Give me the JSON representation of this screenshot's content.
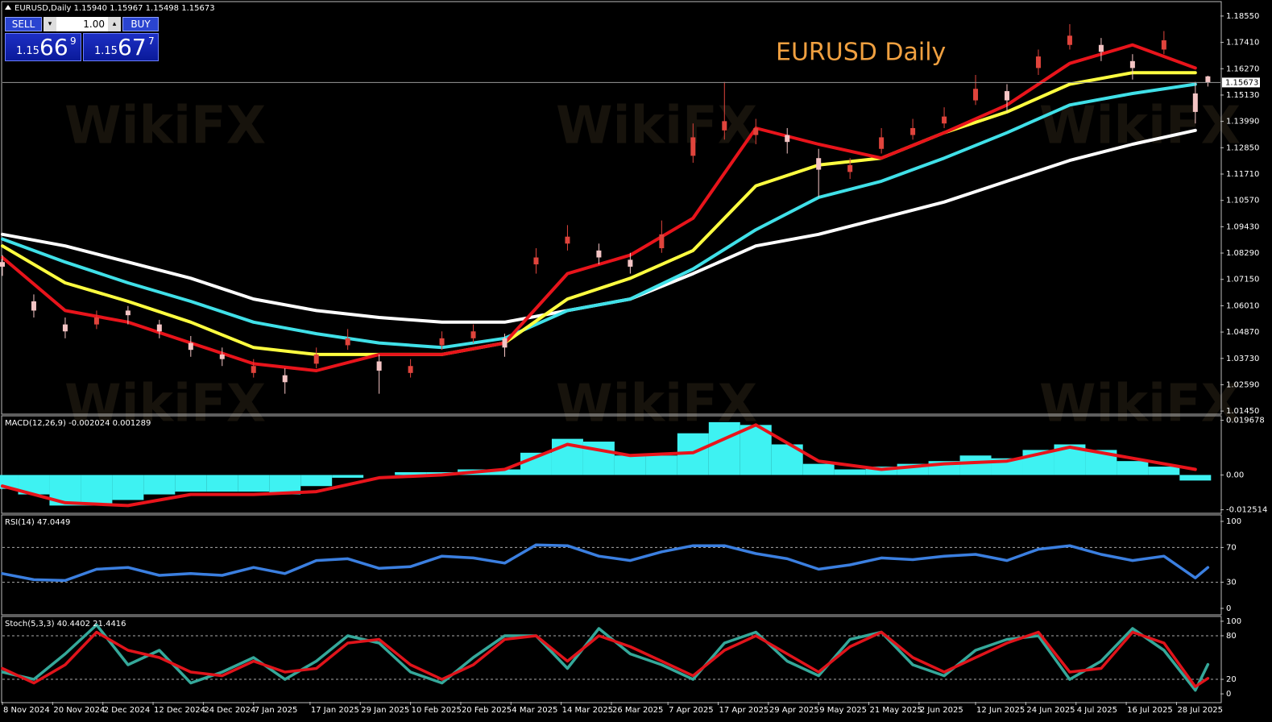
{
  "header": {
    "symbol_line": "EURUSD,Daily  1.15940 1.15967 1.15498 1.15673",
    "trade_panel": {
      "sell": "SELL",
      "lots": "1.00",
      "buy": "BUY",
      "bid": {
        "big": "1.15",
        "main": "66",
        "sup": "9"
      },
      "ask": {
        "big": "1.15",
        "main": "67",
        "sup": "7"
      }
    }
  },
  "watermark": "WikiFX",
  "chart_data": [
    {
      "type": "candlestick",
      "title": "EURUSD Daily",
      "xlim": [
        0,
        194
      ],
      "ylim": [
        1.0135,
        1.1914
      ],
      "yticks": [
        {
          "value": 1.1855,
          "label": "1.18550"
        },
        {
          "value": 1.1741,
          "label": "1.17410"
        },
        {
          "value": 1.1627,
          "label": "1.16270"
        },
        {
          "value": 1.1513,
          "label": "1.15130"
        },
        {
          "value": 1.1399,
          "label": "1.13990"
        },
        {
          "value": 1.1285,
          "label": "1.12850"
        },
        {
          "value": 1.1171,
          "label": "1.11710"
        },
        {
          "value": 1.1057,
          "label": "1.10570"
        },
        {
          "value": 1.0943,
          "label": "1.09430"
        },
        {
          "value": 1.0829,
          "label": "1.08290"
        },
        {
          "value": 1.0715,
          "label": "1.07150"
        },
        {
          "value": 1.0601,
          "label": "1.06010"
        },
        {
          "value": 1.0487,
          "label": "1.04870"
        },
        {
          "value": 1.0373,
          "label": "1.03730"
        },
        {
          "value": 1.0259,
          "label": "1.02590"
        },
        {
          "value": 1.0145,
          "label": "1.01450"
        }
      ],
      "up_color": "#e0443c",
      "down_color": "#f4c4c4",
      "x": [
        0,
        5,
        10,
        15,
        20,
        25,
        30,
        35,
        40,
        45,
        50,
        55,
        60,
        65,
        70,
        75,
        80,
        85,
        90,
        95,
        100,
        105,
        110,
        115,
        120,
        125,
        130,
        135,
        140,
        145,
        150,
        155,
        160,
        165,
        170,
        175,
        180,
        185,
        190,
        192
      ],
      "open": [
        1.079,
        1.062,
        1.052,
        1.052,
        1.058,
        1.052,
        1.044,
        1.039,
        1.031,
        1.03,
        1.035,
        1.043,
        1.036,
        1.031,
        1.043,
        1.046,
        1.046,
        1.078,
        1.087,
        1.084,
        1.08,
        1.085,
        1.125,
        1.136,
        1.134,
        1.134,
        1.124,
        1.118,
        1.128,
        1.134,
        1.139,
        1.149,
        1.153,
        1.163,
        1.173,
        1.173,
        1.166,
        1.171,
        1.152,
        1.1594
      ],
      "high": [
        1.082,
        1.065,
        1.055,
        1.058,
        1.06,
        1.054,
        1.047,
        1.042,
        1.037,
        1.033,
        1.042,
        1.05,
        1.039,
        1.037,
        1.049,
        1.052,
        1.048,
        1.085,
        1.095,
        1.087,
        1.083,
        1.097,
        1.139,
        1.157,
        1.141,
        1.137,
        1.128,
        1.124,
        1.137,
        1.141,
        1.146,
        1.16,
        1.156,
        1.171,
        1.182,
        1.176,
        1.169,
        1.179,
        1.157,
        1.15967
      ],
      "low": [
        1.073,
        1.055,
        1.046,
        1.05,
        1.052,
        1.046,
        1.038,
        1.034,
        1.029,
        1.022,
        1.033,
        1.041,
        1.022,
        1.029,
        1.041,
        1.044,
        1.038,
        1.074,
        1.084,
        1.078,
        1.074,
        1.083,
        1.122,
        1.132,
        1.13,
        1.126,
        1.107,
        1.115,
        1.126,
        1.132,
        1.137,
        1.147,
        1.144,
        1.16,
        1.171,
        1.166,
        1.158,
        1.169,
        1.139,
        1.15498
      ],
      "close": [
        1.077,
        1.058,
        1.049,
        1.055,
        1.056,
        1.049,
        1.041,
        1.037,
        1.034,
        1.027,
        1.039,
        1.046,
        1.032,
        1.034,
        1.046,
        1.049,
        1.042,
        1.081,
        1.09,
        1.081,
        1.077,
        1.091,
        1.133,
        1.14,
        1.137,
        1.131,
        1.119,
        1.121,
        1.133,
        1.137,
        1.142,
        1.154,
        1.149,
        1.168,
        1.177,
        1.17,
        1.163,
        1.175,
        1.144,
        1.15673
      ],
      "ma_x": [
        0,
        10,
        20,
        30,
        40,
        50,
        60,
        70,
        80,
        90,
        100,
        110,
        120,
        130,
        140,
        150,
        160,
        170,
        180,
        190
      ],
      "overlays": [
        {
          "color": "#ffffff",
          "values": [
            1.091,
            1.086,
            1.079,
            1.072,
            1.063,
            1.058,
            1.055,
            1.053,
            1.053,
            1.058,
            1.063,
            1.074,
            1.086,
            1.091,
            1.098,
            1.105,
            1.114,
            1.123,
            1.13,
            1.136
          ]
        },
        {
          "color": "#40e0e8",
          "values": [
            1.089,
            1.079,
            1.07,
            1.062,
            1.053,
            1.048,
            1.044,
            1.042,
            1.046,
            1.058,
            1.063,
            1.076,
            1.093,
            1.107,
            1.114,
            1.124,
            1.135,
            1.147,
            1.152,
            1.156
          ]
        },
        {
          "color": "#ffff40",
          "values": [
            1.086,
            1.07,
            1.062,
            1.053,
            1.042,
            1.039,
            1.039,
            1.039,
            1.044,
            1.063,
            1.072,
            1.084,
            1.112,
            1.121,
            1.124,
            1.135,
            1.144,
            1.156,
            1.161,
            1.161
          ]
        },
        {
          "color": "#e8141b",
          "values": [
            1.081,
            1.058,
            1.053,
            1.044,
            1.035,
            1.032,
            1.039,
            1.039,
            1.044,
            1.074,
            1.082,
            1.098,
            1.137,
            1.13,
            1.124,
            1.135,
            1.147,
            1.165,
            1.173,
            1.163
          ]
        }
      ],
      "last_price": {
        "value": 1.15673,
        "label": "1.15673"
      }
    },
    {
      "type": "macd",
      "label": "MACD(12,26,9) -0.002024 0.001289",
      "xlim": [
        0,
        194
      ],
      "ylim": [
        -0.0135,
        0.021
      ],
      "yticks": [
        0.019678,
        {
          "value": 0,
          "label": "0.00"
        },
        -0.012514
      ],
      "hist_color": "#3ef2f2",
      "signal_color": "#e8141b",
      "x": [
        0,
        5,
        10,
        15,
        20,
        25,
        30,
        35,
        40,
        45,
        50,
        55,
        60,
        65,
        70,
        75,
        80,
        85,
        90,
        95,
        100,
        105,
        110,
        115,
        120,
        125,
        130,
        135,
        140,
        145,
        150,
        155,
        160,
        165,
        170,
        175,
        180,
        185,
        190
      ],
      "histogram": [
        -0.005,
        -0.007,
        -0.011,
        -0.011,
        -0.009,
        -0.007,
        -0.006,
        -0.006,
        -0.006,
        -0.007,
        -0.004,
        -0.001,
        0,
        0.001,
        0.001,
        0.002,
        0.002,
        0.008,
        0.013,
        0.012,
        0.007,
        0.007,
        0.015,
        0.019,
        0.018,
        0.011,
        0.004,
        0.002,
        0.003,
        0.004,
        0.005,
        0.007,
        0.006,
        0.009,
        0.011,
        0.009,
        0.005,
        0.003,
        -0.002
      ],
      "signal_x": [
        0,
        10,
        20,
        30,
        40,
        50,
        60,
        70,
        80,
        90,
        100,
        110,
        120,
        130,
        140,
        150,
        160,
        170,
        180,
        190
      ],
      "signal": [
        -0.004,
        -0.01,
        -0.011,
        -0.007,
        -0.007,
        -0.006,
        -0.001,
        0,
        0.002,
        0.011,
        0.007,
        0.008,
        0.018,
        0.005,
        0.002,
        0.004,
        0.005,
        0.01,
        0.006,
        0.002
      ]
    },
    {
      "type": "line",
      "label": "RSI(14) 47.0449",
      "xlim": [
        0,
        194
      ],
      "ylim": [
        -6.5,
        106.5
      ],
      "yticks": [
        100,
        70,
        30,
        0
      ],
      "levels": [
        70,
        30
      ],
      "x": [
        0,
        5,
        10,
        15,
        20,
        25,
        30,
        35,
        40,
        45,
        50,
        55,
        60,
        65,
        70,
        75,
        80,
        85,
        90,
        95,
        100,
        105,
        110,
        115,
        120,
        125,
        130,
        135,
        140,
        145,
        150,
        155,
        160,
        165,
        170,
        175,
        180,
        185,
        190,
        192
      ],
      "series": [
        {
          "color": "#3b7fe0",
          "values": [
            40,
            33,
            32,
            45,
            47,
            38,
            40,
            38,
            47,
            40,
            55,
            57,
            46,
            48,
            60,
            58,
            52,
            73,
            72,
            60,
            55,
            65,
            72,
            72,
            63,
            57,
            45,
            50,
            58,
            56,
            60,
            62,
            55,
            68,
            72,
            62,
            55,
            60,
            35,
            47.0449
          ]
        }
      ]
    },
    {
      "type": "line",
      "label": "Stoch(5,3,3) 40.4402 21.4416",
      "xlim": [
        0,
        194
      ],
      "ylim": [
        -11,
        105.5
      ],
      "yticks": [
        100,
        80,
        20,
        0
      ],
      "levels": [
        80,
        20
      ],
      "x": [
        0,
        5,
        10,
        15,
        20,
        25,
        30,
        35,
        40,
        45,
        50,
        55,
        60,
        65,
        70,
        75,
        80,
        85,
        90,
        95,
        100,
        105,
        110,
        115,
        120,
        125,
        130,
        135,
        140,
        145,
        150,
        155,
        160,
        165,
        170,
        175,
        180,
        185,
        190,
        192
      ],
      "series": [
        {
          "color": "#35a89a",
          "values": [
            30,
            20,
            55,
            95,
            40,
            60,
            15,
            30,
            50,
            20,
            45,
            80,
            70,
            30,
            15,
            50,
            80,
            80,
            35,
            90,
            55,
            40,
            20,
            70,
            85,
            45,
            25,
            75,
            85,
            40,
            25,
            60,
            75,
            80,
            20,
            45,
            90,
            60,
            5,
            40.4402
          ]
        },
        {
          "color": "#e0141b",
          "values": [
            35,
            15,
            40,
            85,
            60,
            50,
            30,
            25,
            45,
            30,
            35,
            70,
            75,
            40,
            20,
            40,
            75,
            80,
            45,
            80,
            65,
            45,
            25,
            60,
            80,
            55,
            30,
            65,
            85,
            50,
            30,
            50,
            70,
            85,
            30,
            35,
            85,
            70,
            10,
            21.4416
          ]
        }
      ],
      "xticks": [
        {
          "value": 0,
          "label": "8 Nov 2024"
        },
        {
          "value": 8,
          "label": "20 Nov 2024"
        },
        {
          "value": 16,
          "label": "2 Dec 2024"
        },
        {
          "value": 24,
          "label": "12 Dec 2024"
        },
        {
          "value": 32,
          "label": "24 Dec 2024"
        },
        {
          "value": 40,
          "label": "7 Jan 2025"
        },
        {
          "value": 49,
          "label": "17 Jan 2025"
        },
        {
          "value": 57,
          "label": "29 Jan 2025"
        },
        {
          "value": 65,
          "label": "10 Feb 2025"
        },
        {
          "value": 73,
          "label": "20 Feb 2025"
        },
        {
          "value": 81,
          "label": "4 Mar 2025"
        },
        {
          "value": 89,
          "label": "14 Mar 2025"
        },
        {
          "value": 97,
          "label": "26 Mar 2025"
        },
        {
          "value": 106,
          "label": "7 Apr 2025"
        },
        {
          "value": 114,
          "label": "17 Apr 2025"
        },
        {
          "value": 122,
          "label": "29 Apr 2025"
        },
        {
          "value": 130,
          "label": "9 May 2025"
        },
        {
          "value": 138,
          "label": "21 May 2025"
        },
        {
          "value": 146,
          "label": "2 Jun 2025"
        },
        {
          "value": 155,
          "label": "12 Jun 2025"
        },
        {
          "value": 163,
          "label": "24 Jun 2025"
        },
        {
          "value": 171,
          "label": "4 Jul 2025"
        },
        {
          "value": 179,
          "label": "16 Jul 2025"
        },
        {
          "value": 187,
          "label": "28 Jul 2025"
        }
      ]
    }
  ]
}
